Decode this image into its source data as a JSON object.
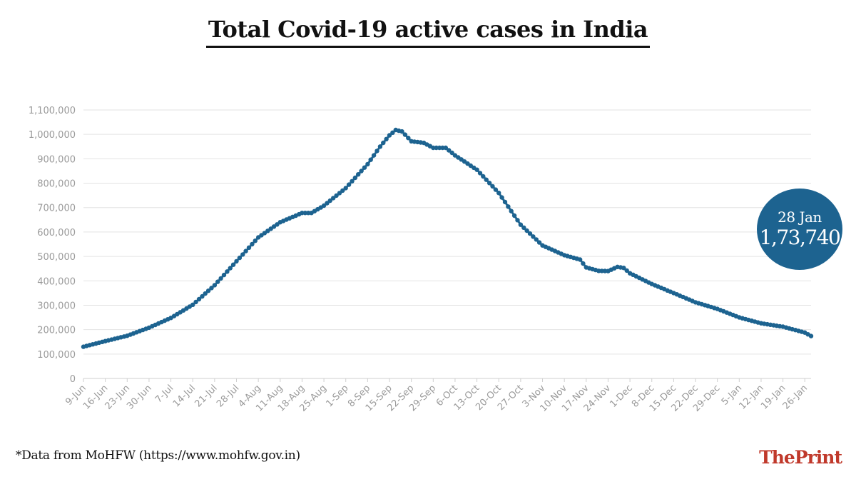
{
  "title": "Total Covid-19 active cases in India",
  "source_note": "*Data from MoHFW (https://www.mohfw.gov.in)",
  "logo": {
    "part1": "The",
    "part2": "Print",
    "color1": "#c0392b",
    "color2": "#c0392b"
  },
  "callout": {
    "date": "28 Jan",
    "value": "1,73,740"
  },
  "colors": {
    "line": "#1d6390",
    "bubble": "#1d6390",
    "grid": "#e3e3e3",
    "axis_text": "#9a9a9a"
  },
  "chart_data": {
    "type": "line",
    "title": "Total Covid-19 active cases in India",
    "xlabel": "",
    "ylabel": "",
    "grid": true,
    "legend": "none",
    "x_start": "9-Jun",
    "x_end": "28-Jan",
    "ylim": [
      0,
      1100000
    ],
    "y_ticks": [
      "0",
      "100,000",
      "200,000",
      "300,000",
      "400,000",
      "500,000",
      "600,000",
      "700,000",
      "800,000",
      "900,000",
      "1,000,000",
      "1,100,000"
    ],
    "x_ticks": [
      "9-Jun",
      "16-Jun",
      "23-Jun",
      "30-Jun",
      "7-Jul",
      "14-Jul",
      "21-Jul",
      "28-Jul",
      "4-Aug",
      "11-Aug",
      "18-Aug",
      "25-Aug",
      "1-Sep",
      "8-Sep",
      "15-Sep",
      "22-Sep",
      "29-Sep",
      "6-Oct",
      "13-Oct",
      "20-Oct",
      "27-Oct",
      "3-Nov",
      "10-Nov",
      "17-Nov",
      "24-Nov",
      "1-Dec",
      "8-Dec",
      "15-Dec",
      "22-Dec",
      "29-Dec",
      "5-Jan",
      "12-Jan",
      "19-Jan",
      "26-Jan"
    ],
    "series": [
      {
        "x": [
          "9-Jun",
          "16-Jun",
          "23-Jun",
          "30-Jun",
          "7-Jul",
          "14-Jul",
          "21-Jul",
          "28-Jul",
          "4-Aug",
          "11-Aug",
          "18-Aug",
          "21-Aug",
          "25-Aug",
          "1-Sep",
          "8-Sep",
          "12-Sep",
          "15-Sep",
          "17-Sep",
          "19-Sep",
          "22-Sep",
          "26-Sep",
          "29-Sep",
          "1-Oct",
          "3-Oct",
          "6-Oct",
          "13-Oct",
          "20-Oct",
          "27-Oct",
          "3-Nov",
          "10-Nov",
          "15-Nov",
          "17-Nov",
          "21-Nov",
          "24-Nov",
          "27-Nov",
          "29-Nov",
          "1-Dec",
          "8-Dec",
          "15-Dec",
          "22-Dec",
          "29-Dec",
          "5-Jan",
          "12-Jan",
          "19-Jan",
          "26-Jan",
          "28-Jan"
        ],
        "values": [
          130000,
          153000,
          175000,
          208000,
          248000,
          302000,
          382000,
          480000,
          578000,
          640000,
          678000,
          678000,
          708000,
          780000,
          878000,
          950000,
          996000,
          1018000,
          1012000,
          972000,
          965000,
          945000,
          945000,
          945000,
          914000,
          855000,
          760000,
          630000,
          545000,
          505000,
          487000,
          455000,
          441000,
          440000,
          457000,
          453000,
          431000,
          387000,
          350000,
          312000,
          285000,
          250000,
          226000,
          212000,
          188000,
          173740
        ]
      }
    ]
  }
}
